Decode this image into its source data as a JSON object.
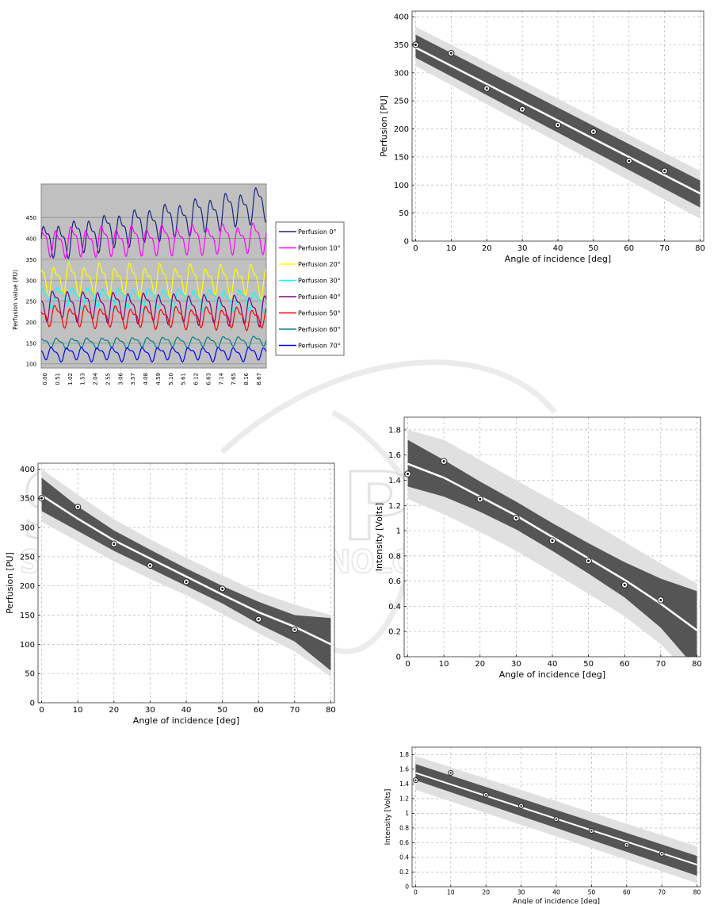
{
  "chart_data": [
    {
      "id": "time-series",
      "type": "line",
      "ylabel": "Perfusion value (PU)",
      "ylim": [
        90,
        530
      ],
      "yticks": [
        100,
        150,
        200,
        250,
        300,
        350,
        400,
        450
      ],
      "x_tick_labels": [
        "0.00",
        "0.51",
        "1.02",
        "1.53",
        "2.04",
        "2.55",
        "3.06",
        "3.57",
        "4.08",
        "4.59",
        "5.10",
        "5.61",
        "6.12",
        "6.63",
        "7.14",
        "7.65",
        "8.16",
        "8.67"
      ],
      "x_range": [
        0,
        8.9
      ],
      "grid": true,
      "legend_position": "right",
      "series": [
        {
          "name": "Perfusion 0°",
          "color": "#1a237e",
          "base": 390,
          "amp": 33,
          "trend": 95,
          "period": 0.6,
          "phase": 0.0
        },
        {
          "name": "Perfusion 10°",
          "color": "#ff00ff",
          "base": 392,
          "amp": 28,
          "trend": 10,
          "period": 0.6,
          "phase": 1.2
        },
        {
          "name": "Perfusion 20°",
          "color": "#ffff00",
          "base": 305,
          "amp": 30,
          "trend": -5,
          "period": 0.6,
          "phase": 2.0
        },
        {
          "name": "Perfusion 30°",
          "color": "#00ffff",
          "base": 262,
          "amp": 20,
          "trend": -10,
          "period": 0.6,
          "phase": 0.6
        },
        {
          "name": "Perfusion 40°",
          "color": "#800080",
          "base": 245,
          "amp": 28,
          "trend": -15,
          "period": 0.6,
          "phase": 2.6
        },
        {
          "name": "Perfusion 50°",
          "color": "#ff0000",
          "base": 215,
          "amp": 20,
          "trend": -5,
          "period": 0.6,
          "phase": 1.6
        },
        {
          "name": "Perfusion 60°",
          "color": "#008080",
          "base": 150,
          "amp": 10,
          "trend": 5,
          "period": 0.6,
          "phase": 0.9
        },
        {
          "name": "Perfusion 70°",
          "color": "#0000ff",
          "base": 125,
          "amp": 13,
          "trend": 0,
          "period": 0.6,
          "phase": 3.0
        }
      ]
    },
    {
      "id": "perfusion-linear",
      "type": "scatter",
      "xlabel": "Angle of incidence [deg]",
      "ylabel": "Perfusion [PU]",
      "xlim": [
        -1,
        81
      ],
      "ylim": [
        0,
        410
      ],
      "xticks": [
        0,
        10,
        20,
        30,
        40,
        50,
        60,
        70,
        80
      ],
      "yticks": [
        0,
        50,
        100,
        150,
        200,
        250,
        300,
        350,
        400
      ],
      "grid": true,
      "points": {
        "x": [
          0,
          10,
          20,
          30,
          40,
          50,
          60,
          70
        ],
        "y": [
          350,
          335,
          272,
          235,
          207,
          195,
          143,
          125
        ]
      },
      "fit": {
        "x": [
          0,
          80
        ],
        "y": [
          345,
          85
        ]
      },
      "ci_inner": {
        "x": [
          0,
          80
        ],
        "upper": [
          368,
          108
        ],
        "lower": [
          327,
          60
        ]
      },
      "ci_outer": {
        "x": [
          0,
          80
        ],
        "upper": [
          382,
          125
        ],
        "lower": [
          312,
          40
        ]
      }
    },
    {
      "id": "perfusion-curved",
      "type": "scatter",
      "xlabel": "Angle of incidence [deg]",
      "ylabel": "Perfusion [PU]",
      "xlim": [
        -1,
        81
      ],
      "ylim": [
        0,
        410
      ],
      "xticks": [
        0,
        10,
        20,
        30,
        40,
        50,
        60,
        70,
        80
      ],
      "yticks": [
        0,
        50,
        100,
        150,
        200,
        250,
        300,
        350,
        400
      ],
      "grid": true,
      "points": {
        "x": [
          0,
          10,
          20,
          30,
          40,
          50,
          60,
          70
        ],
        "y": [
          350,
          335,
          272,
          235,
          207,
          195,
          143,
          125
        ]
      },
      "fit": {
        "x": [
          0,
          10,
          20,
          30,
          40,
          50,
          60,
          70,
          80
        ],
        "y": [
          355,
          315,
          278,
          247,
          216,
          185,
          155,
          130,
          100
        ]
      },
      "ci_inner": {
        "x": [
          0,
          10,
          20,
          30,
          40,
          50,
          60,
          70,
          80
        ],
        "upper": [
          385,
          336,
          295,
          262,
          230,
          200,
          173,
          150,
          145
        ],
        "lower": [
          328,
          294,
          260,
          230,
          200,
          170,
          135,
          105,
          55
        ]
      },
      "ci_outer": {
        "x": [
          0,
          10,
          20,
          30,
          40,
          50,
          60,
          70,
          80
        ],
        "upper": [
          400,
          356,
          314,
          280,
          248,
          218,
          189,
          168,
          150
        ],
        "lower": [
          310,
          276,
          242,
          212,
          184,
          152,
          119,
          88,
          45
        ]
      }
    },
    {
      "id": "intensity-curved",
      "type": "scatter",
      "xlabel": "Angle of incidence [deg]",
      "ylabel": "Intensity [Volts]",
      "xlim": [
        -1,
        81
      ],
      "ylim": [
        0,
        1.9
      ],
      "xticks": [
        0,
        10,
        20,
        30,
        40,
        50,
        60,
        70,
        80
      ],
      "yticks": [
        0,
        0.2,
        0.4,
        0.6,
        0.8,
        1,
        1.2,
        1.4,
        1.6,
        1.8
      ],
      "ytick_labels": [
        "0",
        "0.2",
        "0.4",
        "0.6",
        "0.8",
        "1",
        "1.2",
        "1.4",
        "1.6",
        "1.8"
      ],
      "grid": true,
      "points": {
        "x": [
          0,
          10,
          20,
          30,
          40,
          50,
          60,
          70
        ],
        "y": [
          1.45,
          1.55,
          1.25,
          1.1,
          0.92,
          0.76,
          0.57,
          0.45
        ]
      },
      "fit": {
        "x": [
          0,
          10,
          20,
          30,
          40,
          50,
          60,
          70,
          80
        ],
        "y": [
          1.53,
          1.42,
          1.27,
          1.12,
          0.95,
          0.78,
          0.61,
          0.42,
          0.21
        ]
      },
      "ci_inner": {
        "x": [
          0,
          10,
          20,
          30,
          40,
          50,
          60,
          70,
          80
        ],
        "upper": [
          1.72,
          1.56,
          1.39,
          1.23,
          1.06,
          0.9,
          0.75,
          0.62,
          0.52
        ],
        "lower": [
          1.35,
          1.27,
          1.15,
          1.01,
          0.84,
          0.66,
          0.47,
          0.23,
          -0.1
        ]
      },
      "ci_outer": {
        "x": [
          0,
          10,
          20,
          30,
          40,
          50,
          60,
          70,
          80
        ],
        "upper": [
          1.8,
          1.72,
          1.56,
          1.4,
          1.24,
          1.08,
          0.91,
          0.74,
          0.58
        ],
        "lower": [
          1.25,
          1.13,
          0.99,
          0.84,
          0.67,
          0.5,
          0.32,
          0.1,
          -0.2
        ]
      }
    },
    {
      "id": "intensity-linear",
      "type": "scatter",
      "xlabel": "Angle of incidence [deg]",
      "ylabel": "Intensity [Volts]",
      "xlim": [
        -1,
        81
      ],
      "ylim": [
        0,
        1.9
      ],
      "xticks": [
        0,
        10,
        20,
        30,
        40,
        50,
        60,
        70,
        80
      ],
      "yticks": [
        0,
        0.2,
        0.4,
        0.6,
        0.8,
        1,
        1.2,
        1.4,
        1.6,
        1.8
      ],
      "ytick_labels": [
        "0",
        "0.2",
        "0.4",
        "0.6",
        "0.8",
        "1",
        "1.2",
        "1.4",
        "1.6",
        "1.8"
      ],
      "grid": true,
      "points": {
        "x": [
          0,
          10,
          20,
          30,
          40,
          50,
          60,
          70
        ],
        "y": [
          1.45,
          1.55,
          1.25,
          1.1,
          0.92,
          0.76,
          0.57,
          0.45
        ]
      },
      "fit": {
        "x": [
          0,
          80
        ],
        "y": [
          1.55,
          0.3
        ]
      },
      "ci_inner": {
        "x": [
          0,
          80
        ],
        "upper": [
          1.67,
          0.42
        ],
        "lower": [
          1.45,
          0.15
        ]
      },
      "ci_outer": {
        "x": [
          0,
          80
        ],
        "upper": [
          1.78,
          0.55
        ],
        "lower": [
          1.32,
          0.05
        ]
      }
    }
  ],
  "watermark": {
    "line1": "SCITEPRESS",
    "line2": "SCIENCE AND TECHNOLOGY PUBLICATIONS",
    "color": "#c8c8c8"
  }
}
